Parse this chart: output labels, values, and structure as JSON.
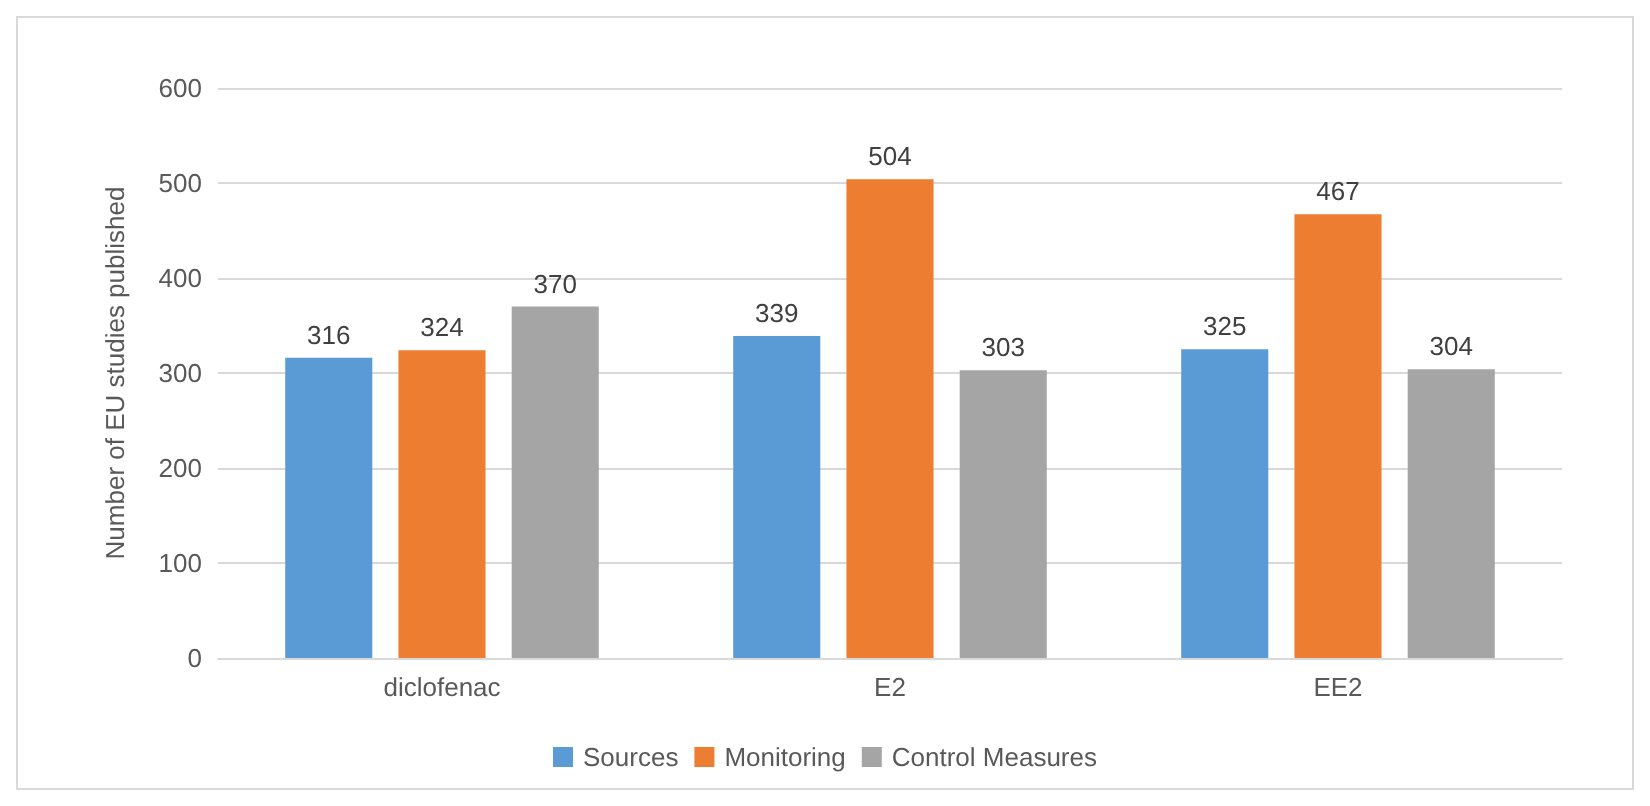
{
  "chart_data": {
    "type": "bar",
    "ylabel": "Number of EU studies published",
    "categories": [
      "diclofenac",
      "E2",
      "EE2"
    ],
    "series": [
      {
        "name": "Sources",
        "color": "#5b9bd5",
        "values": [
          316,
          339,
          325
        ]
      },
      {
        "name": "Monitoring",
        "color": "#ed7d31",
        "values": [
          324,
          504,
          467
        ]
      },
      {
        "name": "Control Measures",
        "color": "#a5a5a5",
        "values": [
          370,
          303,
          304
        ]
      }
    ],
    "ylim": [
      0,
      600
    ],
    "yticks": [
      0,
      100,
      200,
      300,
      400,
      500,
      600
    ],
    "grid": "y",
    "legend": "bottom",
    "data_labels": true
  }
}
